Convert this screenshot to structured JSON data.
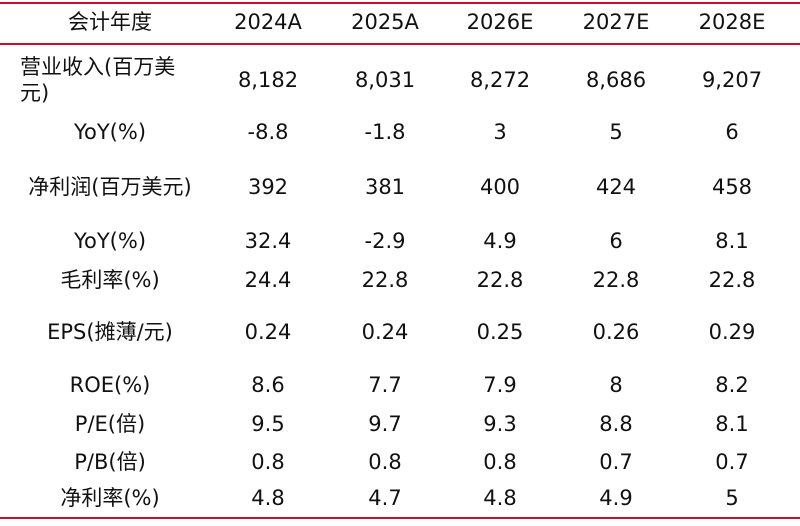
{
  "table": {
    "header": [
      "会计年度",
      "2024A",
      "2025A",
      "2026E",
      "2027E",
      "2028E"
    ],
    "rows": [
      [
        "营业收入(百万美元)",
        "8,182",
        "8,031",
        "8,272",
        "8,686",
        "9,207"
      ],
      [
        "YoY(%)",
        "-8.8",
        "-1.8",
        "3",
        "5",
        "6"
      ],
      [
        "净利润(百万美元)",
        "392",
        "381",
        "400",
        "424",
        "458"
      ],
      [
        "YoY(%)",
        "32.4",
        "-2.9",
        "4.9",
        "6",
        "8.1"
      ],
      [
        "毛利率(%)",
        "24.4",
        "22.8",
        "22.8",
        "22.8",
        "22.8"
      ],
      [
        "EPS(摊薄/元)",
        "0.24",
        "0.24",
        "0.25",
        "0.26",
        "0.29"
      ],
      [
        "ROE(%)",
        "8.6",
        "7.7",
        "7.9",
        "8",
        "8.2"
      ],
      [
        "P/E(倍)",
        "9.5",
        "9.7",
        "9.3",
        "8.8",
        "8.1"
      ],
      [
        "P/B(倍)",
        "0.8",
        "0.8",
        "0.8",
        "0.7",
        "0.7"
      ],
      [
        "净利率(%)",
        "4.8",
        "4.7",
        "4.8",
        "4.9",
        "5"
      ]
    ]
  }
}
